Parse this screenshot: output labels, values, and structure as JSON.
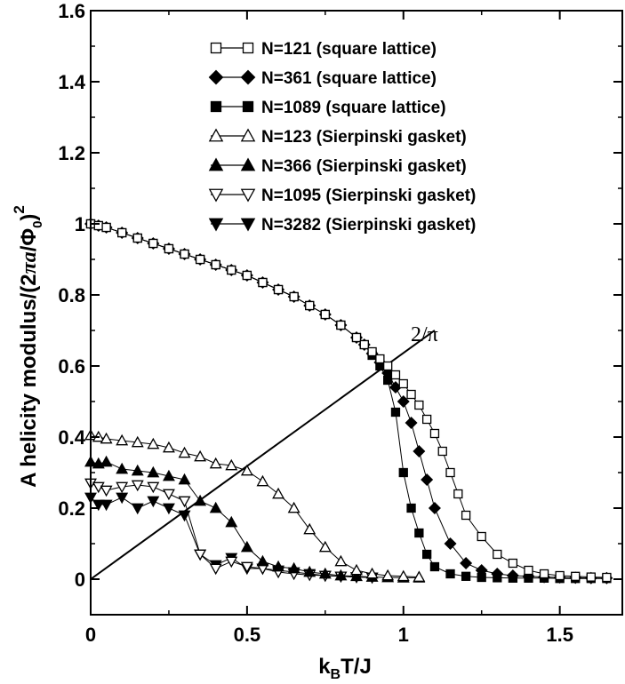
{
  "chart_data": {
    "type": "line",
    "xlabel": "k_B T/J",
    "ylabel": "A helicity modulus/(2πa/Φ₀)²",
    "xlim": [
      0,
      1.7
    ],
    "ylim": [
      -0.1,
      1.6
    ],
    "xticks": [
      0,
      0.5,
      1,
      1.5
    ],
    "xtick_labels": [
      "0",
      "0.5",
      "1",
      "1.5"
    ],
    "yticks": [
      0,
      0.2,
      0.4,
      0.6,
      0.8,
      1,
      1.2,
      1.4,
      1.6
    ],
    "ytick_labels": [
      "0",
      "0.2",
      "0.4",
      "0.6",
      "0.8",
      "1",
      "1.2",
      "1.4",
      "1.6"
    ],
    "legend_position": "top-right",
    "annotation": {
      "label": "2/π",
      "line": {
        "x": [
          0,
          1.1
        ],
        "y": [
          0,
          0.7003
        ]
      }
    },
    "series": [
      {
        "name": "N=121 (square lattice)",
        "marker": "square",
        "filled": false,
        "x": [
          0,
          0.025,
          0.05,
          0.1,
          0.15,
          0.2,
          0.25,
          0.3,
          0.35,
          0.4,
          0.45,
          0.5,
          0.55,
          0.6,
          0.65,
          0.7,
          0.75,
          0.8,
          0.85,
          0.875,
          0.9,
          0.925,
          0.95,
          0.975,
          1.0,
          1.025,
          1.05,
          1.075,
          1.1,
          1.125,
          1.15,
          1.175,
          1.2,
          1.25,
          1.3,
          1.35,
          1.4,
          1.45,
          1.5,
          1.55,
          1.6,
          1.65
        ],
        "y": [
          1.0,
          0.995,
          0.99,
          0.975,
          0.96,
          0.945,
          0.93,
          0.915,
          0.9,
          0.885,
          0.87,
          0.855,
          0.835,
          0.815,
          0.795,
          0.77,
          0.745,
          0.715,
          0.68,
          0.66,
          0.64,
          0.62,
          0.6,
          0.575,
          0.55,
          0.52,
          0.49,
          0.45,
          0.41,
          0.36,
          0.3,
          0.24,
          0.18,
          0.12,
          0.07,
          0.045,
          0.025,
          0.015,
          0.01,
          0.008,
          0.006,
          0.005
        ]
      },
      {
        "name": "N=361 (square lattice)",
        "marker": "diamond",
        "filled": true,
        "x": [
          0,
          0.025,
          0.05,
          0.1,
          0.15,
          0.2,
          0.25,
          0.3,
          0.35,
          0.4,
          0.45,
          0.5,
          0.55,
          0.6,
          0.65,
          0.7,
          0.75,
          0.8,
          0.85,
          0.875,
          0.9,
          0.925,
          0.95,
          0.975,
          1.0,
          1.025,
          1.05,
          1.075,
          1.1,
          1.15,
          1.2,
          1.25,
          1.3,
          1.35,
          1.4,
          1.45,
          1.5,
          1.55,
          1.6,
          1.65
        ],
        "y": [
          1.0,
          0.995,
          0.99,
          0.975,
          0.96,
          0.945,
          0.93,
          0.915,
          0.9,
          0.885,
          0.87,
          0.855,
          0.835,
          0.815,
          0.795,
          0.77,
          0.745,
          0.715,
          0.68,
          0.66,
          0.635,
          0.61,
          0.58,
          0.54,
          0.5,
          0.44,
          0.36,
          0.28,
          0.2,
          0.1,
          0.045,
          0.025,
          0.015,
          0.01,
          0.008,
          0.006,
          0.005,
          0.004,
          0.003,
          0.003
        ]
      },
      {
        "name": "N=1089 (square lattice)",
        "marker": "square",
        "filled": true,
        "x": [
          0,
          0.025,
          0.05,
          0.1,
          0.15,
          0.2,
          0.25,
          0.3,
          0.35,
          0.4,
          0.45,
          0.5,
          0.55,
          0.6,
          0.65,
          0.7,
          0.75,
          0.8,
          0.85,
          0.875,
          0.9,
          0.925,
          0.95,
          0.975,
          1.0,
          1.025,
          1.05,
          1.075,
          1.1,
          1.15,
          1.2,
          1.25,
          1.3,
          1.35,
          1.4,
          1.45,
          1.5,
          1.55,
          1.6,
          1.65
        ],
        "y": [
          1.0,
          0.995,
          0.99,
          0.975,
          0.96,
          0.945,
          0.93,
          0.915,
          0.9,
          0.885,
          0.87,
          0.855,
          0.835,
          0.815,
          0.795,
          0.77,
          0.745,
          0.715,
          0.68,
          0.66,
          0.63,
          0.6,
          0.56,
          0.47,
          0.3,
          0.2,
          0.13,
          0.07,
          0.035,
          0.015,
          0.008,
          0.005,
          0.004,
          0.003,
          0.003,
          0.003,
          0.002,
          0.002,
          0.002,
          0.002
        ]
      },
      {
        "name": "N=123 (Sierpinski gasket)",
        "marker": "triangle-up",
        "filled": false,
        "x": [
          0,
          0.025,
          0.05,
          0.1,
          0.15,
          0.2,
          0.25,
          0.3,
          0.35,
          0.4,
          0.45,
          0.5,
          0.55,
          0.6,
          0.65,
          0.7,
          0.75,
          0.8,
          0.85,
          0.9,
          0.95,
          1.0,
          1.05
        ],
        "y": [
          0.405,
          0.4,
          0.395,
          0.39,
          0.385,
          0.38,
          0.37,
          0.355,
          0.345,
          0.325,
          0.32,
          0.305,
          0.275,
          0.24,
          0.2,
          0.14,
          0.09,
          0.05,
          0.025,
          0.015,
          0.01,
          0.008,
          0.006
        ]
      },
      {
        "name": "N=366 (Sierpinski gasket)",
        "marker": "triangle-up",
        "filled": true,
        "x": [
          0,
          0.025,
          0.05,
          0.1,
          0.15,
          0.2,
          0.25,
          0.3,
          0.35,
          0.4,
          0.45,
          0.5,
          0.55,
          0.6,
          0.65,
          0.7,
          0.75,
          0.8,
          0.85,
          0.9,
          0.95,
          1.0,
          1.05
        ],
        "y": [
          0.33,
          0.325,
          0.33,
          0.31,
          0.305,
          0.3,
          0.29,
          0.28,
          0.22,
          0.2,
          0.16,
          0.09,
          0.05,
          0.035,
          0.03,
          0.02,
          0.015,
          0.01,
          0.008,
          0.006,
          0.005,
          0.004,
          0.004
        ]
      },
      {
        "name": "N=1095 (Sierpinski gasket)",
        "marker": "triangle-down",
        "filled": false,
        "x": [
          0,
          0.025,
          0.05,
          0.1,
          0.15,
          0.2,
          0.25,
          0.3,
          0.35,
          0.4,
          0.45,
          0.5,
          0.55,
          0.6,
          0.65,
          0.7,
          0.75,
          0.8,
          0.85,
          0.9
        ],
        "y": [
          0.27,
          0.26,
          0.25,
          0.26,
          0.265,
          0.26,
          0.24,
          0.22,
          0.07,
          0.03,
          0.05,
          0.035,
          0.03,
          0.02,
          0.015,
          0.012,
          0.01,
          0.008,
          0.006,
          0.005
        ]
      },
      {
        "name": "N=3282 (Sierpinski gasket)",
        "marker": "triangle-down",
        "filled": true,
        "x": [
          0,
          0.025,
          0.05,
          0.1,
          0.15,
          0.2,
          0.25,
          0.3,
          0.35,
          0.4,
          0.45,
          0.5,
          0.55,
          0.6,
          0.65,
          0.7,
          0.75,
          0.8,
          0.85,
          0.9
        ],
        "y": [
          0.23,
          0.21,
          0.21,
          0.23,
          0.2,
          0.22,
          0.2,
          0.18,
          0.07,
          0.04,
          0.06,
          0.03,
          0.03,
          0.025,
          0.02,
          0.015,
          0.01,
          0.008,
          0.006,
          0.005
        ]
      }
    ]
  }
}
